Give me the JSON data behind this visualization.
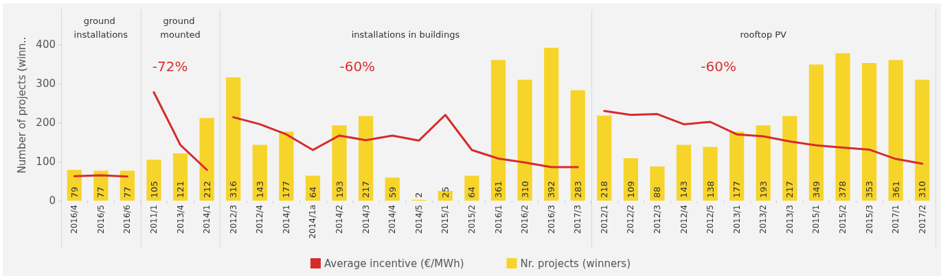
{
  "chart_data": [
    {
      "type": "bar",
      "title": "ground installations",
      "categories": [
        "2016/4",
        "2016/5",
        "2016/6"
      ],
      "series": [
        {
          "name": "Average incentive (€/MWh)",
          "type": "line",
          "color": "#d62b2b",
          "values": [
            63,
            65,
            62
          ]
        },
        {
          "name": "Nr. projects (winners)",
          "color": "#f7d42a",
          "values": [
            79,
            77,
            77
          ],
          "value_labels": [
            "79",
            "77",
            "77"
          ]
        }
      ],
      "ylabel": "Number of projects (winn..",
      "ylim": [
        0,
        490
      ],
      "yticks": [
        0,
        100,
        200,
        300,
        400
      ],
      "grid": false,
      "marker": "none",
      "legend": "bottom"
    },
    {
      "type": "bar",
      "title": "ground mounted",
      "categories": [
        "2011/1",
        "2013/4",
        "2014/1"
      ],
      "series": [
        {
          "name": "Average incentive (€/MWh)",
          "type": "line",
          "color": "#d62b2b",
          "values": [
            278,
            143,
            79
          ]
        },
        {
          "name": "Nr. projects (winners)",
          "color": "#f7d42a",
          "values": [
            105,
            121,
            212
          ],
          "value_labels": [
            "105",
            "121",
            "212"
          ]
        }
      ],
      "annotations": [
        "-72%"
      ],
      "ylim": [
        0,
        490
      ],
      "yticks": [
        0,
        100,
        200,
        300,
        400
      ],
      "tick_labels": "x",
      "grid": false,
      "marker": "none"
    },
    {
      "type": "bar",
      "title": "installations in buildings",
      "categories": [
        "2012/3",
        "2012/4",
        "2014/1",
        "2014/1a",
        "2014/2",
        "2014/3",
        "2014/4",
        "2014/5",
        "2015/1",
        "2015/2",
        "2016/1",
        "2016/2",
        "2016/3",
        "2017/3"
      ],
      "series": [
        {
          "name": "Average incentive (€/MWh)",
          "type": "line",
          "color": "#d62b2b",
          "values": [
            214,
            196,
            170,
            130,
            167,
            155,
            167,
            154,
            220,
            130,
            108,
            98,
            86,
            86
          ]
        },
        {
          "name": "Nr. projects (winners)",
          "color": "#f7d42a",
          "values": [
            316,
            143,
            177,
            64,
            193,
            217,
            59,
            2,
            25,
            64,
            361,
            310,
            392,
            283
          ],
          "value_labels": [
            "316",
            "143",
            "177",
            "64",
            "193",
            "217",
            "59",
            "2",
            "25",
            "64",
            "361",
            "310",
            "392",
            "283"
          ]
        }
      ],
      "annotations": [
        "-60%"
      ],
      "ylim": [
        0,
        490
      ],
      "yticks": [
        0,
        100,
        200,
        300,
        400
      ],
      "tick_labels": "x",
      "grid": false,
      "marker": "none"
    },
    {
      "type": "bar",
      "title": "rooftop PV",
      "categories": [
        "2012/1",
        "2012/2",
        "2012/3",
        "2012/4",
        "2012/5",
        "2013/1",
        "2013/2",
        "2013/3",
        "2015/1",
        "2015/2",
        "2015/3",
        "2017/1",
        "2017/2"
      ],
      "series": [
        {
          "name": "Average incentive (€/MWh)",
          "type": "line",
          "color": "#d62b2b",
          "values": [
            230,
            220,
            222,
            196,
            202,
            170,
            165,
            152,
            142,
            136,
            131,
            107,
            95
          ]
        },
        {
          "name": "Nr. projects (winners)",
          "color": "#f7d42a",
          "values": [
            218,
            109,
            88,
            143,
            138,
            177,
            193,
            217,
            349,
            378,
            353,
            361,
            310
          ],
          "value_labels": [
            "218",
            "109",
            "88",
            "143",
            "138",
            "177",
            "193",
            "217",
            "349",
            "378",
            "353",
            "361",
            "310"
          ]
        }
      ],
      "annotations": [
        "-60%"
      ],
      "ylim": [
        0,
        490
      ],
      "yticks": [
        0,
        100,
        200,
        300,
        400
      ],
      "tick_labels": "x",
      "grid": false,
      "marker": "none"
    }
  ]
}
